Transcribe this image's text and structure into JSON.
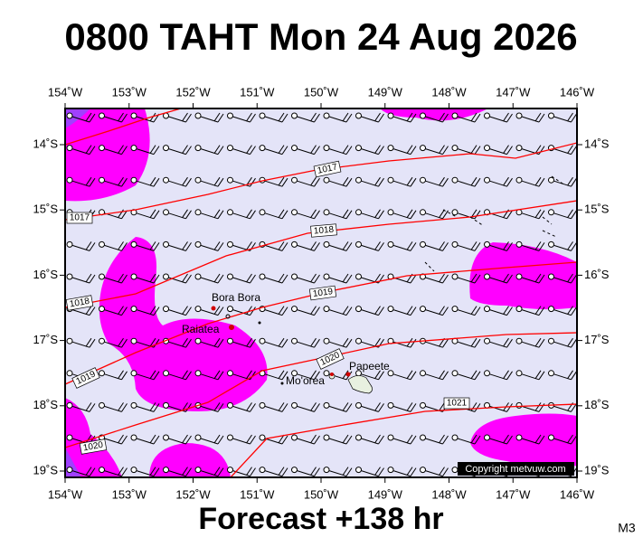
{
  "header": {
    "title": "0800 TAHT Mon 24 Aug 2026"
  },
  "map": {
    "lon_labels": [
      "154˚W",
      "153˚W",
      "152˚W",
      "151˚W",
      "150˚W",
      "149˚W",
      "148˚W",
      "147˚W",
      "146˚W"
    ],
    "lat_labels": [
      "14˚S",
      "15˚S",
      "16˚S",
      "17˚S",
      "18˚S",
      "19˚S"
    ],
    "isobar_labels": [
      "1017",
      "1017",
      "1018",
      "1018",
      "1019",
      "1019",
      "1020",
      "1020",
      "1021"
    ],
    "places": [
      "Bora Bora",
      "Raiatea",
      "Mo'orea",
      "Papeete"
    ],
    "copyright": "Copyright metvuw.com"
  },
  "footer": {
    "forecast": "Forecast +138 hr",
    "code": "M3"
  }
}
